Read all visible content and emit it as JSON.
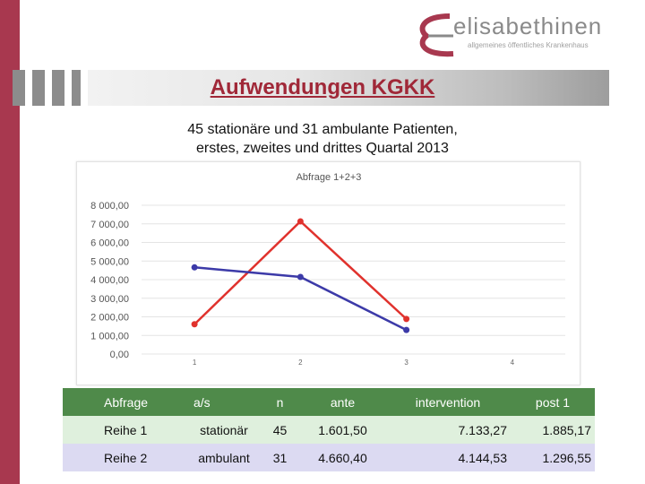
{
  "logo": {
    "name": "elisabethinen",
    "tagline": "allgemeines öffentliches Krankenhaus"
  },
  "header": {
    "title": "Aufwendungen KGKK",
    "subtitle_line1": "45 stationäre und 31 ambulante Patienten,",
    "subtitle_line2": "erstes, zweites und drittes Quartal 2013"
  },
  "colors": {
    "brand": "#a8384f",
    "series_red": "#e0322d",
    "series_blue": "#3c3aa8",
    "table_header": "#4f8a4a"
  },
  "chart_data": {
    "type": "line",
    "title": "Abfrage 1+2+3",
    "x": [
      1,
      2,
      3,
      4
    ],
    "x_tick_labels": [
      "1",
      "2",
      "3",
      "4"
    ],
    "y_tick_labels": [
      "0,00",
      "1 000,00",
      "2 000,00",
      "3 000,00",
      "4 000,00",
      "5 000,00",
      "6 000,00",
      "7 000,00",
      "8 000,00"
    ],
    "ylim": [
      0,
      8000
    ],
    "xlim": [
      0.5,
      4.5
    ],
    "grid": true,
    "series": [
      {
        "color": "#e0322d",
        "x": [
          1,
          2,
          3
        ],
        "values": [
          1601.5,
          7133.27,
          1885.17
        ]
      },
      {
        "color": "#3c3aa8",
        "x": [
          1,
          2,
          3
        ],
        "values": [
          4660.4,
          4144.53,
          1296.55
        ]
      }
    ]
  },
  "table": {
    "headers": [
      "Abfrage",
      "a/s",
      "n",
      "ante",
      "intervention",
      "post 1"
    ],
    "rows": [
      [
        "Reihe 1",
        "stationär",
        "45",
        "1.601,50",
        "7.133,27",
        "1.885,17"
      ],
      [
        "Reihe 2",
        "ambulant",
        "31",
        "4.660,40",
        "4.144,53",
        "1.296,55"
      ]
    ]
  }
}
